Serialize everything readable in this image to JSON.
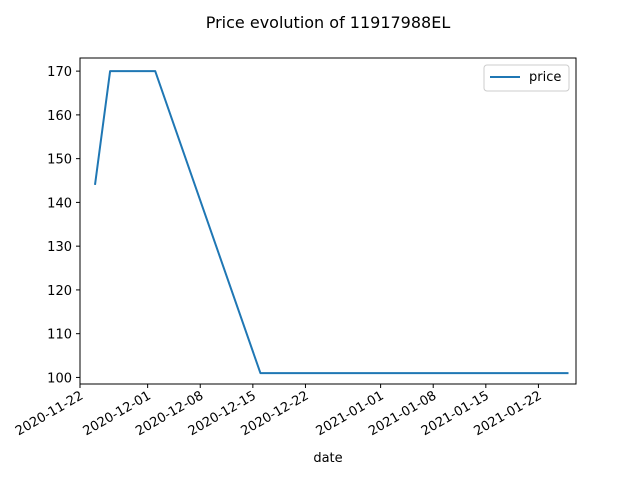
{
  "chart_data": {
    "type": "line",
    "title": "Price evolution of 11917988EL",
    "xlabel": "date",
    "ylabel": "",
    "x_type": "date",
    "xlim": [
      "2020-11-22",
      "2021-01-27"
    ],
    "ylim": [
      98.5,
      173
    ],
    "x_ticks": [
      "2020-11-22",
      "2020-12-01",
      "2020-12-08",
      "2020-12-15",
      "2020-12-22",
      "2021-01-01",
      "2021-01-08",
      "2021-01-15",
      "2021-01-22"
    ],
    "y_ticks": [
      100,
      110,
      120,
      130,
      140,
      150,
      160,
      170
    ],
    "grid": false,
    "legend": {
      "position": "top-right",
      "entries": [
        "price"
      ]
    },
    "series": [
      {
        "name": "price",
        "color": "#1f77b4",
        "points": [
          {
            "x": "2020-11-24",
            "y": 144
          },
          {
            "x": "2020-11-26",
            "y": 170
          },
          {
            "x": "2020-12-02",
            "y": 170
          },
          {
            "x": "2020-12-16",
            "y": 101
          },
          {
            "x": "2021-01-26",
            "y": 101
          }
        ]
      }
    ]
  }
}
